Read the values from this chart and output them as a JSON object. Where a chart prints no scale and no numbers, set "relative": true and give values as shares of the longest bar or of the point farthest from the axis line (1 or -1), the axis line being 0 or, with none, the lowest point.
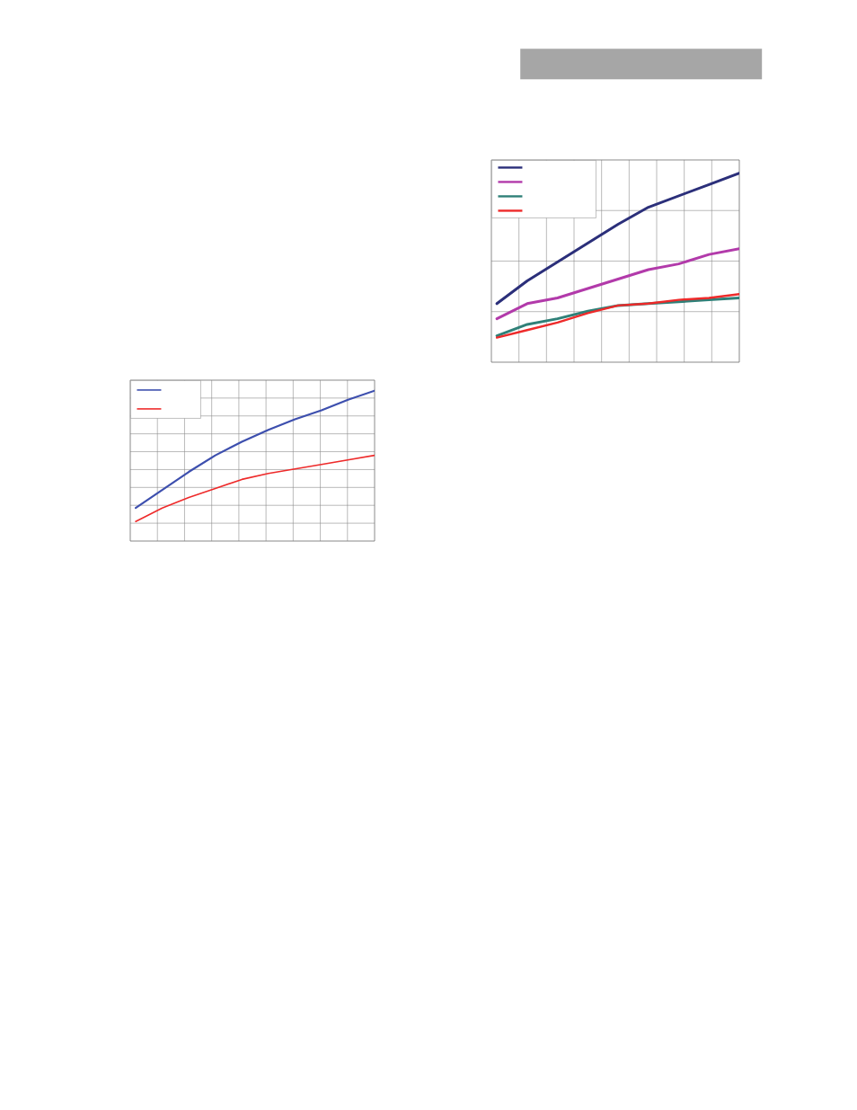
{
  "chart_data": [
    {
      "type": "line",
      "relative": true,
      "categories": [
        null,
        null,
        null,
        null,
        null,
        null,
        null,
        null,
        null
      ],
      "grid": true,
      "marker": "none",
      "line_style": "solid",
      "series": [
        {
          "color": "#2b2f7a",
          "values": [
            0.31,
            0.43,
            0.53,
            0.63,
            0.73,
            0.82,
            0.88,
            0.94,
            1
          ]
        },
        {
          "color": "#b23aaa",
          "values": [
            0.23,
            0.31,
            0.34,
            0.39,
            0.44,
            0.49,
            0.52,
            0.57,
            0.6
          ]
        },
        {
          "color": "#2f8078",
          "values": [
            0.14,
            0.2,
            0.23,
            0.27,
            0.3,
            0.31,
            0.32,
            0.33,
            0.34
          ]
        },
        {
          "color": "#ee2a2a",
          "values": [
            0.13,
            0.17,
            0.21,
            0.26,
            0.3,
            0.31,
            0.33,
            0.34,
            0.36
          ]
        }
      ]
    },
    {
      "type": "line",
      "relative": true,
      "categories": [
        null,
        null,
        null,
        null,
        null,
        null,
        null,
        null,
        null,
        null
      ],
      "grid": true,
      "marker": "none",
      "line_style": "solid",
      "series": [
        {
          "color": "#3d4fae",
          "values": [
            0.22,
            0.34,
            0.46,
            0.57,
            0.66,
            0.74,
            0.81,
            0.87,
            0.94,
            1
          ]
        },
        {
          "color": "#ee2a2a",
          "values": [
            0.13,
            0.22,
            0.29,
            0.35,
            0.41,
            0.45,
            0.48,
            0.51,
            0.54,
            0.57
          ]
        }
      ]
    }
  ]
}
